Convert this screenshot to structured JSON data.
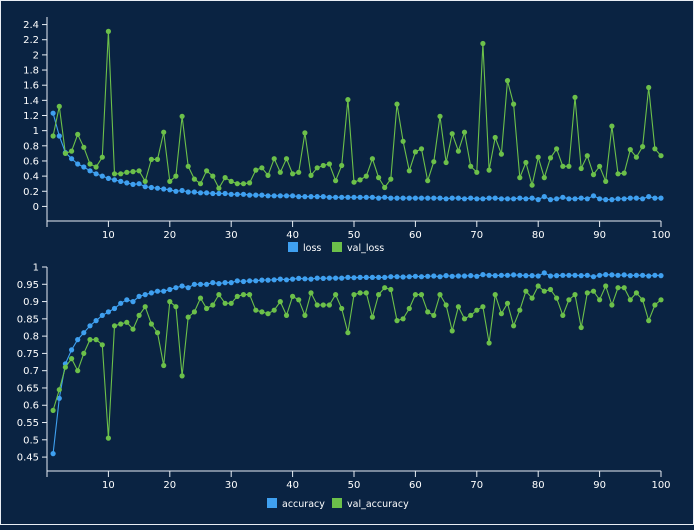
{
  "chart_data": [
    {
      "type": "line",
      "xlim": [
        0,
        100
      ],
      "ylim": [
        -0.1,
        2.5
      ],
      "x_ticks": [
        10,
        20,
        30,
        40,
        50,
        60,
        70,
        80,
        90,
        100
      ],
      "y_ticks": [
        0,
        0.2,
        0.4,
        0.6,
        0.8,
        1,
        1.2,
        1.4,
        1.6,
        1.8,
        2,
        2.2,
        2.4
      ],
      "legend_position": "bottom-center",
      "grid": false,
      "series": [
        {
          "name": "loss",
          "color": "#3fa0f0",
          "x": [
            1,
            2,
            3,
            4,
            5,
            6,
            7,
            8,
            9,
            10,
            11,
            12,
            13,
            14,
            15,
            16,
            17,
            18,
            19,
            20,
            21,
            22,
            23,
            24,
            25,
            26,
            27,
            28,
            29,
            30,
            31,
            32,
            33,
            34,
            35,
            36,
            37,
            38,
            39,
            40,
            41,
            42,
            43,
            44,
            45,
            46,
            47,
            48,
            49,
            50,
            51,
            52,
            53,
            54,
            55,
            56,
            57,
            58,
            59,
            60,
            61,
            62,
            63,
            64,
            65,
            66,
            67,
            68,
            69,
            70,
            71,
            72,
            73,
            74,
            75,
            76,
            77,
            78,
            79,
            80,
            81,
            82,
            83,
            84,
            85,
            86,
            87,
            88,
            89,
            90,
            91,
            92,
            93,
            94,
            95,
            96,
            97,
            98,
            99,
            100
          ],
          "values": [
            1.23,
            0.93,
            0.71,
            0.63,
            0.56,
            0.52,
            0.47,
            0.43,
            0.4,
            0.37,
            0.35,
            0.33,
            0.31,
            0.29,
            0.3,
            0.26,
            0.25,
            0.24,
            0.23,
            0.22,
            0.2,
            0.21,
            0.19,
            0.19,
            0.18,
            0.18,
            0.17,
            0.17,
            0.17,
            0.16,
            0.16,
            0.16,
            0.15,
            0.15,
            0.15,
            0.14,
            0.14,
            0.14,
            0.14,
            0.14,
            0.13,
            0.13,
            0.13,
            0.13,
            0.13,
            0.12,
            0.12,
            0.12,
            0.12,
            0.12,
            0.12,
            0.12,
            0.12,
            0.11,
            0.12,
            0.11,
            0.11,
            0.11,
            0.11,
            0.11,
            0.11,
            0.11,
            0.11,
            0.11,
            0.1,
            0.11,
            0.11,
            0.1,
            0.11,
            0.1,
            0.1,
            0.11,
            0.11,
            0.1,
            0.1,
            0.1,
            0.11,
            0.1,
            0.11,
            0.09,
            0.13,
            0.09,
            0.1,
            0.12,
            0.1,
            0.1,
            0.11,
            0.1,
            0.14,
            0.1,
            0.09,
            0.09,
            0.1,
            0.1,
            0.11,
            0.11,
            0.1,
            0.13,
            0.11,
            0.11
          ]
        },
        {
          "name": "val_loss",
          "color": "#6cc04a",
          "x": [
            1,
            2,
            3,
            4,
            5,
            6,
            7,
            8,
            9,
            10,
            11,
            12,
            13,
            14,
            15,
            16,
            17,
            18,
            19,
            20,
            21,
            22,
            23,
            24,
            25,
            26,
            27,
            28,
            29,
            30,
            31,
            32,
            33,
            34,
            35,
            36,
            37,
            38,
            39,
            40,
            41,
            42,
            43,
            44,
            45,
            46,
            47,
            48,
            49,
            50,
            51,
            52,
            53,
            54,
            55,
            56,
            57,
            58,
            59,
            60,
            61,
            62,
            63,
            64,
            65,
            66,
            67,
            68,
            69,
            70,
            71,
            72,
            73,
            74,
            75,
            76,
            77,
            78,
            79,
            80,
            81,
            82,
            83,
            84,
            85,
            86,
            87,
            88,
            89,
            90,
            91,
            92,
            93,
            94,
            95,
            96,
            97,
            98,
            99,
            100
          ],
          "values": [
            0.93,
            1.32,
            0.7,
            0.73,
            0.95,
            0.78,
            0.56,
            0.52,
            0.65,
            2.31,
            0.43,
            0.43,
            0.45,
            0.46,
            0.47,
            0.33,
            0.62,
            0.62,
            0.98,
            0.33,
            0.4,
            1.19,
            0.53,
            0.36,
            0.3,
            0.47,
            0.4,
            0.24,
            0.38,
            0.33,
            0.3,
            0.3,
            0.31,
            0.48,
            0.51,
            0.41,
            0.63,
            0.45,
            0.63,
            0.43,
            0.45,
            0.97,
            0.41,
            0.51,
            0.54,
            0.56,
            0.34,
            0.54,
            1.41,
            0.32,
            0.35,
            0.4,
            0.63,
            0.38,
            0.25,
            0.36,
            1.35,
            0.86,
            0.47,
            0.72,
            0.76,
            0.34,
            0.59,
            1.19,
            0.58,
            0.96,
            0.73,
            0.98,
            0.53,
            0.45,
            2.15,
            0.48,
            0.91,
            0.69,
            1.66,
            1.35,
            0.38,
            0.58,
            0.28,
            0.65,
            0.38,
            0.64,
            0.76,
            0.53,
            0.53,
            1.44,
            0.5,
            0.67,
            0.42,
            0.53,
            0.33,
            1.06,
            0.43,
            0.44,
            0.75,
            0.65,
            0.79,
            1.57,
            0.76,
            0.67
          ]
        }
      ]
    },
    {
      "type": "line",
      "xlim": [
        0,
        100
      ],
      "ylim": [
        0.43,
        1.0
      ],
      "x_ticks": [
        10,
        20,
        30,
        40,
        50,
        60,
        70,
        80,
        90,
        100
      ],
      "y_ticks": [
        0.45,
        0.5,
        0.55,
        0.6,
        0.65,
        0.7,
        0.75,
        0.8,
        0.85,
        0.9,
        0.95,
        1
      ],
      "legend_position": "bottom-center",
      "grid": false,
      "series": [
        {
          "name": "accuracy",
          "color": "#3fa0f0",
          "x": [
            1,
            2,
            3,
            4,
            5,
            6,
            7,
            8,
            9,
            10,
            11,
            12,
            13,
            14,
            15,
            16,
            17,
            18,
            19,
            20,
            21,
            22,
            23,
            24,
            25,
            26,
            27,
            28,
            29,
            30,
            31,
            32,
            33,
            34,
            35,
            36,
            37,
            38,
            39,
            40,
            41,
            42,
            43,
            44,
            45,
            46,
            47,
            48,
            49,
            50,
            51,
            52,
            53,
            54,
            55,
            56,
            57,
            58,
            59,
            60,
            61,
            62,
            63,
            64,
            65,
            66,
            67,
            68,
            69,
            70,
            71,
            72,
            73,
            74,
            75,
            76,
            77,
            78,
            79,
            80,
            81,
            82,
            83,
            84,
            85,
            86,
            87,
            88,
            89,
            90,
            91,
            92,
            93,
            94,
            95,
            96,
            97,
            98,
            99,
            100
          ],
          "values": [
            0.46,
            0.62,
            0.72,
            0.76,
            0.79,
            0.81,
            0.83,
            0.845,
            0.86,
            0.87,
            0.88,
            0.895,
            0.905,
            0.9,
            0.915,
            0.92,
            0.925,
            0.93,
            0.93,
            0.935,
            0.94,
            0.945,
            0.94,
            0.95,
            0.95,
            0.95,
            0.955,
            0.952,
            0.955,
            0.955,
            0.96,
            0.958,
            0.96,
            0.96,
            0.962,
            0.962,
            0.963,
            0.965,
            0.963,
            0.965,
            0.967,
            0.966,
            0.965,
            0.968,
            0.967,
            0.968,
            0.968,
            0.968,
            0.97,
            0.969,
            0.97,
            0.97,
            0.97,
            0.97,
            0.97,
            0.972,
            0.972,
            0.971,
            0.972,
            0.973,
            0.972,
            0.973,
            0.974,
            0.972,
            0.975,
            0.973,
            0.974,
            0.974,
            0.975,
            0.973,
            0.978,
            0.976,
            0.975,
            0.976,
            0.976,
            0.977,
            0.976,
            0.975,
            0.975,
            0.974,
            0.983,
            0.974,
            0.975,
            0.976,
            0.976,
            0.976,
            0.975,
            0.976,
            0.972,
            0.976,
            0.978,
            0.977,
            0.976,
            0.977,
            0.975,
            0.976,
            0.976,
            0.974,
            0.976,
            0.975
          ]
        },
        {
          "name": "val_accuracy",
          "color": "#6cc04a",
          "x": [
            1,
            2,
            3,
            4,
            5,
            6,
            7,
            8,
            9,
            10,
            11,
            12,
            13,
            14,
            15,
            16,
            17,
            18,
            19,
            20,
            21,
            22,
            23,
            24,
            25,
            26,
            27,
            28,
            29,
            30,
            31,
            32,
            33,
            34,
            35,
            36,
            37,
            38,
            39,
            40,
            41,
            42,
            43,
            44,
            45,
            46,
            47,
            48,
            49,
            50,
            51,
            52,
            53,
            54,
            55,
            56,
            57,
            58,
            59,
            60,
            61,
            62,
            63,
            64,
            65,
            66,
            67,
            68,
            69,
            70,
            71,
            72,
            73,
            74,
            75,
            76,
            77,
            78,
            79,
            80,
            81,
            82,
            83,
            84,
            85,
            86,
            87,
            88,
            89,
            90,
            91,
            92,
            93,
            94,
            95,
            96,
            97,
            98,
            99,
            100
          ],
          "values": [
            0.585,
            0.645,
            0.71,
            0.735,
            0.7,
            0.75,
            0.79,
            0.79,
            0.775,
            0.505,
            0.83,
            0.835,
            0.84,
            0.82,
            0.86,
            0.885,
            0.835,
            0.81,
            0.715,
            0.9,
            0.885,
            0.685,
            0.855,
            0.87,
            0.91,
            0.88,
            0.89,
            0.92,
            0.895,
            0.895,
            0.915,
            0.92,
            0.92,
            0.875,
            0.87,
            0.865,
            0.875,
            0.9,
            0.86,
            0.915,
            0.905,
            0.86,
            0.925,
            0.89,
            0.89,
            0.89,
            0.92,
            0.88,
            0.81,
            0.92,
            0.925,
            0.925,
            0.855,
            0.92,
            0.94,
            0.935,
            0.845,
            0.85,
            0.88,
            0.92,
            0.92,
            0.87,
            0.86,
            0.92,
            0.89,
            0.815,
            0.885,
            0.85,
            0.86,
            0.875,
            0.885,
            0.78,
            0.92,
            0.865,
            0.895,
            0.83,
            0.875,
            0.93,
            0.91,
            0.945,
            0.93,
            0.935,
            0.91,
            0.86,
            0.905,
            0.92,
            0.825,
            0.925,
            0.93,
            0.905,
            0.945,
            0.89,
            0.94,
            0.94,
            0.905,
            0.925,
            0.905,
            0.845,
            0.89,
            0.905
          ]
        }
      ]
    }
  ]
}
